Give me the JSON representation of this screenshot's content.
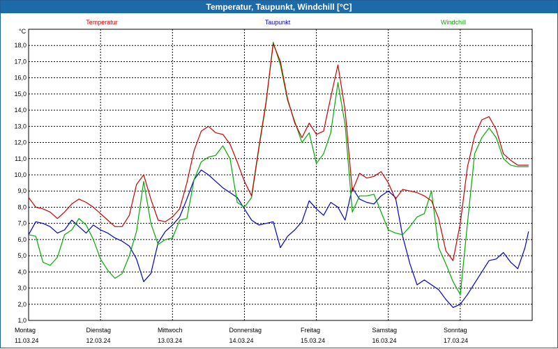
{
  "chart_data": {
    "type": "line",
    "title": "Temperatur, Taupunkt, Windchill [°C]",
    "ylabel": "°C",
    "ylim": [
      1.0,
      19.0
    ],
    "yticks": [
      "1,0",
      "2,0",
      "3,0",
      "4,0",
      "5,0",
      "6,0",
      "7,0",
      "8,0",
      "9,0",
      "10,0",
      "11,0",
      "12,0",
      "13,0",
      "14,0",
      "15,0",
      "16,0",
      "17,0",
      "18,0"
    ],
    "xlim": [
      0,
      7.0
    ],
    "xticks": [
      {
        "day": "Montag",
        "date": "11.03.24"
      },
      {
        "day": "Dienstag",
        "date": "12.03.24"
      },
      {
        "day": "Mittwoch",
        "date": "13.03.24"
      },
      {
        "day": "Donnerstag",
        "date": "14.03.24"
      },
      {
        "day": "Freitag",
        "date": "15.03.24"
      },
      {
        "day": "Samstag",
        "date": "16.03.24"
      },
      {
        "day": "Sonntag",
        "date": "17.03.24"
      }
    ],
    "grid": true,
    "series": [
      {
        "name": "Temperatur",
        "color": "#cc0000",
        "x": [
          0.0,
          0.1,
          0.2,
          0.3,
          0.4,
          0.5,
          0.6,
          0.7,
          0.8,
          0.9,
          1.0,
          1.1,
          1.2,
          1.3,
          1.4,
          1.5,
          1.6,
          1.7,
          1.8,
          1.9,
          2.0,
          2.1,
          2.2,
          2.3,
          2.4,
          2.5,
          2.6,
          2.7,
          2.8,
          2.9,
          3.0,
          3.1,
          3.2,
          3.3,
          3.4,
          3.5,
          3.6,
          3.7,
          3.8,
          3.9,
          4.0,
          4.1,
          4.2,
          4.3,
          4.4,
          4.5,
          4.6,
          4.7,
          4.8,
          4.9,
          5.0,
          5.1,
          5.2,
          5.3,
          5.4,
          5.5,
          5.6,
          5.7,
          5.8,
          5.9,
          6.0,
          6.1,
          6.2,
          6.3,
          6.4,
          6.5,
          6.6,
          6.7,
          6.8,
          6.9,
          6.95
        ],
        "values": [
          8.6,
          8.0,
          7.9,
          7.7,
          7.3,
          7.7,
          8.2,
          8.5,
          8.3,
          8.0,
          7.6,
          7.2,
          6.8,
          6.8,
          7.5,
          9.4,
          10.0,
          8.5,
          7.2,
          7.1,
          7.4,
          7.9,
          9.5,
          11.5,
          12.7,
          13.0,
          12.6,
          12.5,
          11.9,
          10.8,
          9.6,
          8.7,
          11.7,
          14.5,
          18.1,
          17.0,
          14.7,
          13.2,
          12.3,
          13.2,
          12.5,
          12.7,
          14.8,
          16.8,
          14.0,
          9.0,
          10.1,
          9.8,
          9.9,
          10.2,
          9.5,
          8.5,
          9.1,
          9.0,
          8.9,
          8.7,
          8.4,
          7.3,
          5.3,
          4.7,
          7.0,
          10.5,
          12.4,
          13.4,
          13.6,
          12.8,
          11.3,
          10.9,
          10.6,
          10.6,
          10.6
        ]
      },
      {
        "name": "Taupunkt",
        "color": "#0000cc",
        "x": [
          0.0,
          0.1,
          0.2,
          0.3,
          0.4,
          0.5,
          0.6,
          0.7,
          0.8,
          0.9,
          1.0,
          1.1,
          1.2,
          1.3,
          1.4,
          1.5,
          1.6,
          1.7,
          1.8,
          1.9,
          2.0,
          2.1,
          2.2,
          2.3,
          2.4,
          2.5,
          2.6,
          2.7,
          2.8,
          2.9,
          3.0,
          3.1,
          3.2,
          3.3,
          3.4,
          3.5,
          3.6,
          3.7,
          3.8,
          3.9,
          4.0,
          4.1,
          4.2,
          4.3,
          4.4,
          4.5,
          4.6,
          4.7,
          4.8,
          4.9,
          5.0,
          5.1,
          5.2,
          5.3,
          5.4,
          5.5,
          5.6,
          5.7,
          5.8,
          5.9,
          6.0,
          6.1,
          6.2,
          6.3,
          6.4,
          6.5,
          6.6,
          6.7,
          6.8,
          6.9,
          6.95
        ],
        "values": [
          6.3,
          7.1,
          7.0,
          6.8,
          6.4,
          6.6,
          7.2,
          6.8,
          6.4,
          6.9,
          6.6,
          6.4,
          6.1,
          5.9,
          5.6,
          4.8,
          3.4,
          3.9,
          5.8,
          6.5,
          6.9,
          7.4,
          8.5,
          9.7,
          10.3,
          10.0,
          9.6,
          9.2,
          8.9,
          8.6,
          7.9,
          7.2,
          6.9,
          7.0,
          7.1,
          5.5,
          6.2,
          6.6,
          7.1,
          8.4,
          7.9,
          7.5,
          8.3,
          8.0,
          7.2,
          9.2,
          8.5,
          8.3,
          8.2,
          8.7,
          9.0,
          8.6,
          6.2,
          4.5,
          3.2,
          3.5,
          3.2,
          2.9,
          2.3,
          1.8,
          2.0,
          2.6,
          3.3,
          4.0,
          4.7,
          4.8,
          5.2,
          4.6,
          4.2,
          5.5,
          6.5
        ]
      },
      {
        "name": "Windchill",
        "color": "#00aa00",
        "x": [
          0.0,
          0.1,
          0.2,
          0.3,
          0.4,
          0.5,
          0.6,
          0.7,
          0.8,
          0.9,
          1.0,
          1.1,
          1.2,
          1.3,
          1.4,
          1.5,
          1.6,
          1.7,
          1.8,
          1.9,
          2.0,
          2.1,
          2.2,
          2.3,
          2.4,
          2.5,
          2.6,
          2.7,
          2.8,
          2.9,
          3.0,
          3.1,
          3.2,
          3.3,
          3.4,
          3.5,
          3.6,
          3.7,
          3.8,
          3.9,
          4.0,
          4.1,
          4.2,
          4.3,
          4.4,
          4.5,
          4.6,
          4.7,
          4.8,
          4.9,
          5.0,
          5.1,
          5.2,
          5.3,
          5.4,
          5.5,
          5.6,
          5.7,
          5.8,
          5.9,
          6.0,
          6.1,
          6.2,
          6.3,
          6.4,
          6.5,
          6.6,
          6.7,
          6.8,
          6.9,
          6.95
        ],
        "values": [
          6.3,
          6.2,
          4.6,
          4.4,
          4.9,
          6.3,
          6.6,
          7.3,
          6.9,
          6.0,
          4.8,
          4.1,
          3.6,
          3.9,
          5.0,
          6.5,
          9.6,
          7.0,
          5.7,
          6.0,
          6.1,
          7.2,
          7.3,
          9.7,
          10.8,
          11.1,
          11.2,
          11.8,
          11.0,
          8.3,
          8.0,
          8.6,
          11.6,
          14.4,
          18.2,
          16.8,
          14.6,
          13.3,
          12.0,
          12.6,
          10.7,
          11.3,
          12.6,
          15.7,
          13.1,
          7.7,
          8.7,
          8.7,
          8.8,
          7.7,
          6.6,
          6.4,
          6.3,
          6.8,
          7.4,
          7.6,
          9.0,
          5.5,
          4.5,
          3.4,
          2.6,
          7.0,
          11.3,
          12.3,
          12.9,
          12.3,
          11.0,
          10.6,
          10.5,
          10.5,
          10.5
        ]
      }
    ]
  }
}
